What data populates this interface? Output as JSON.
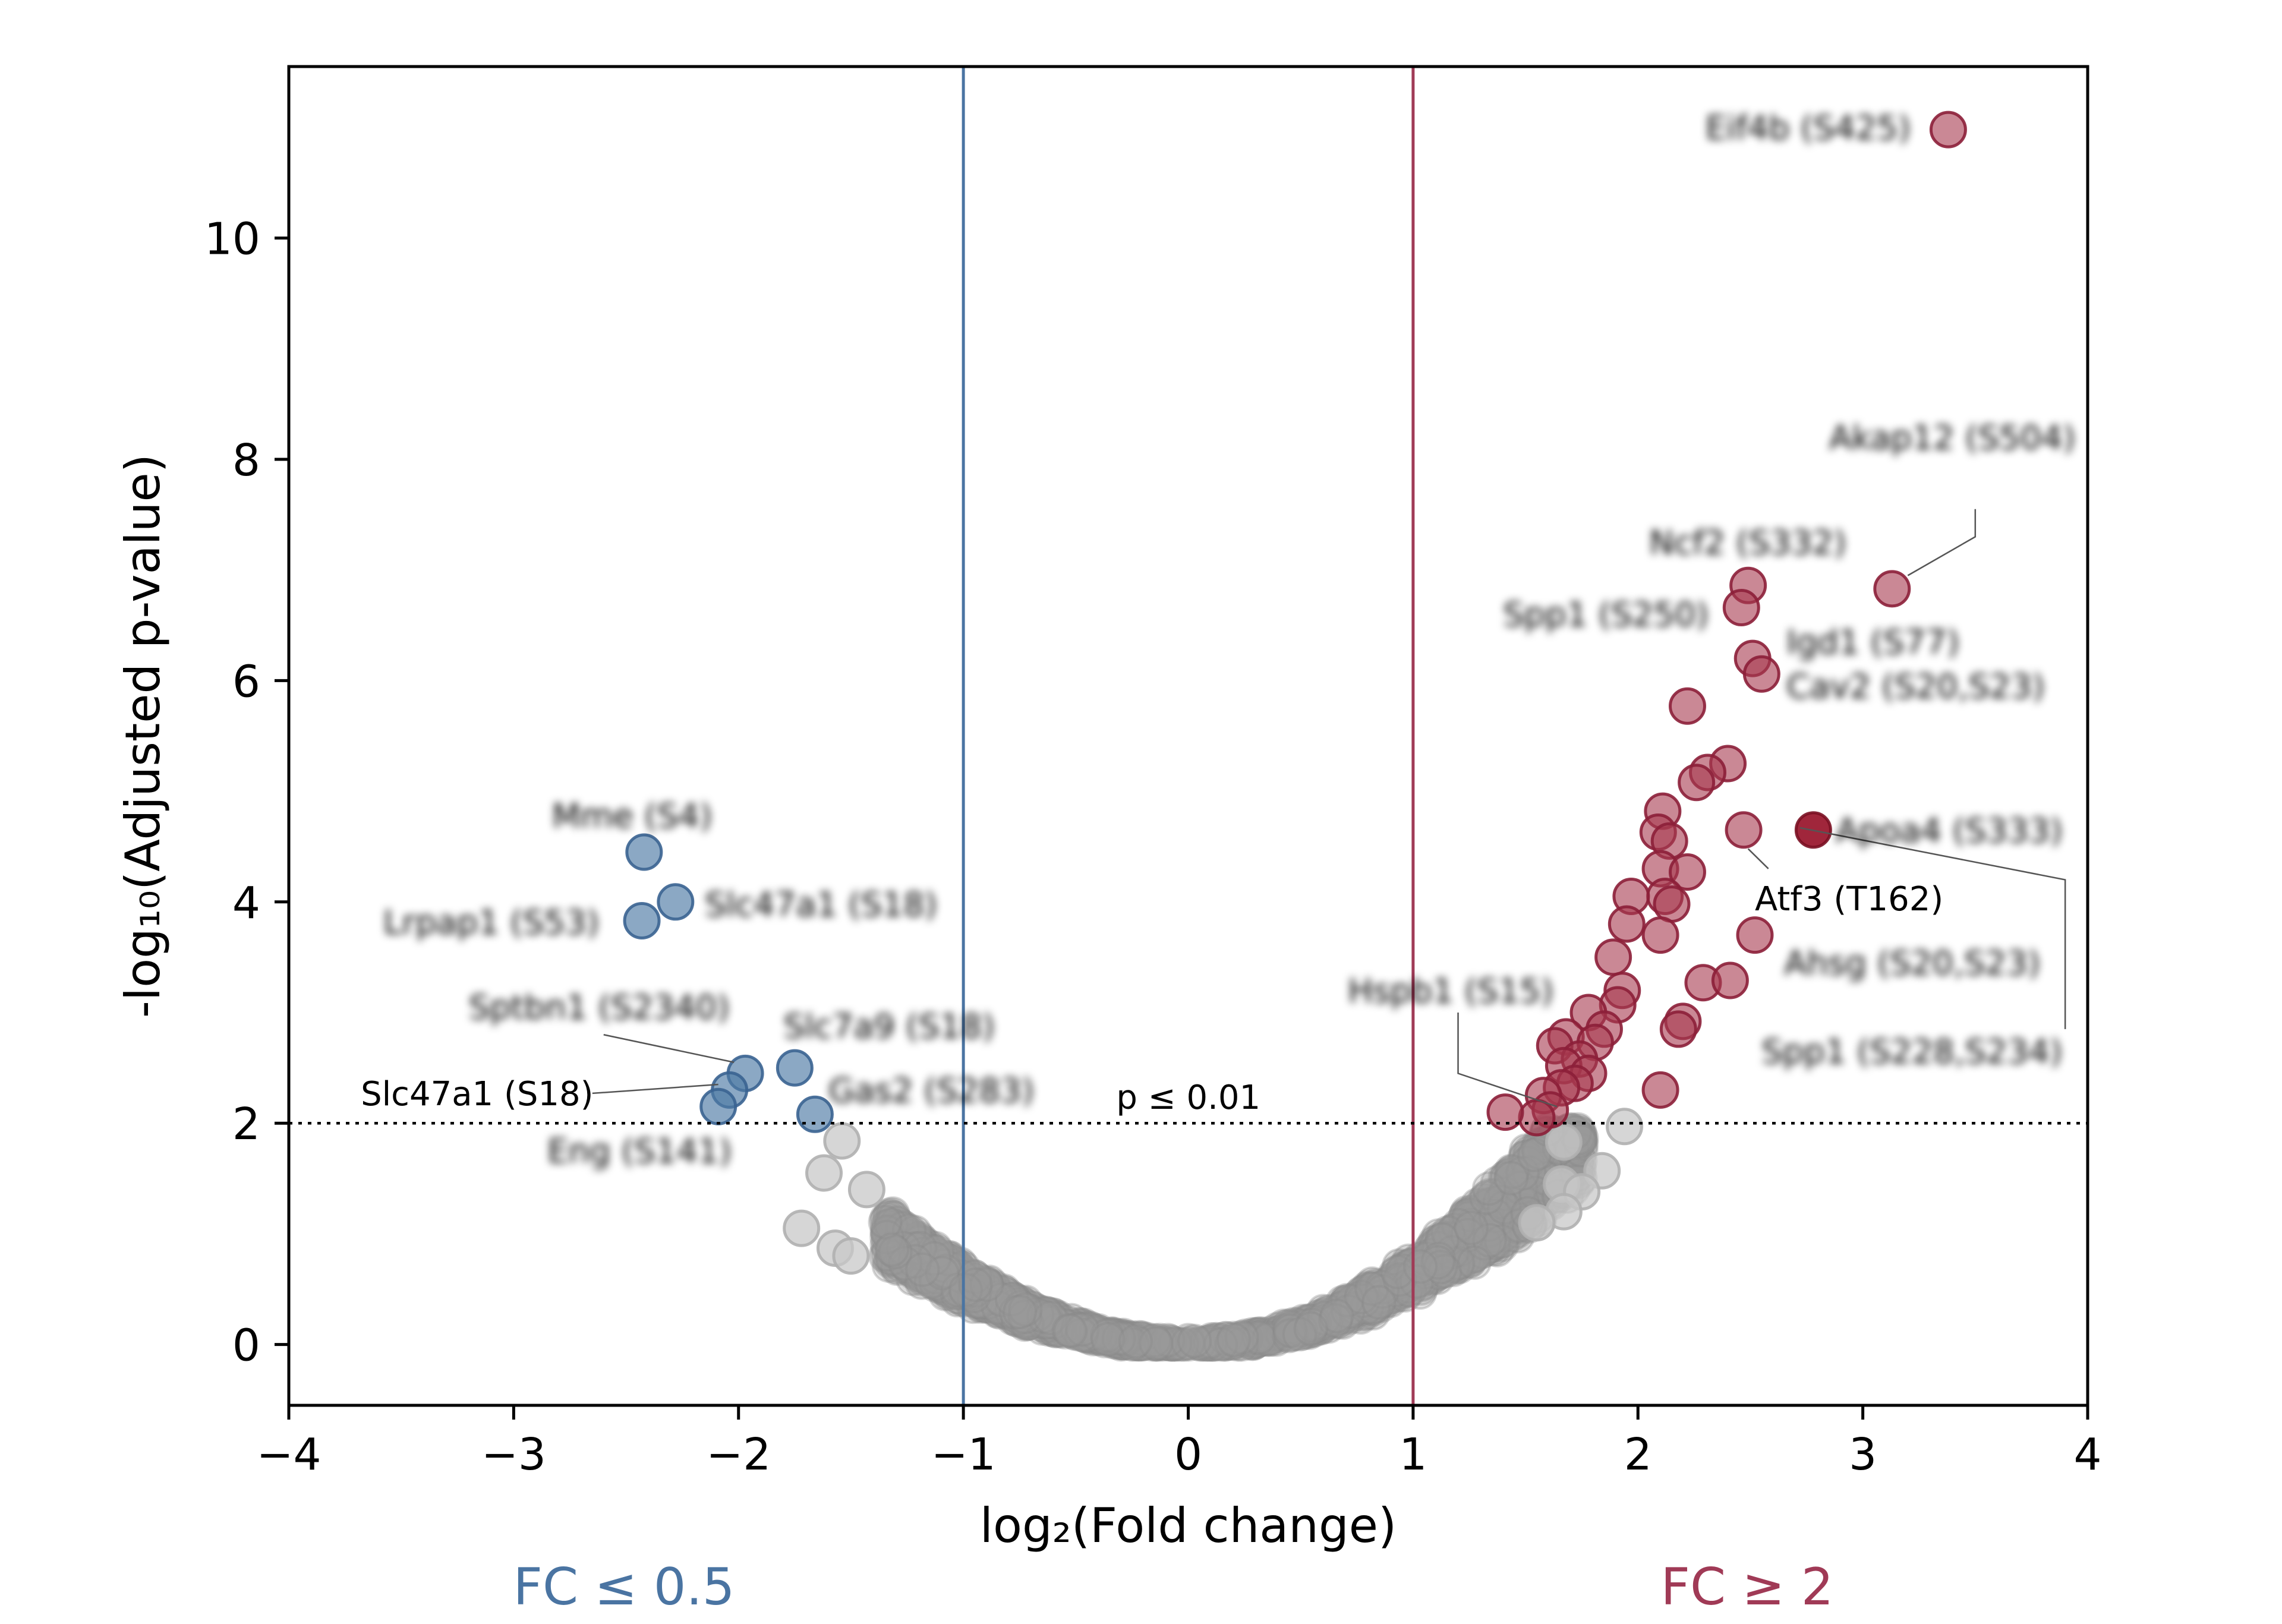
{
  "chart_data": {
    "type": "scatter",
    "xlabel": "log₂(Fold change)",
    "ylabel": "-log₁₀(Adjusted p-value)",
    "xlim": [
      -4,
      4
    ],
    "ylim": [
      -0.55,
      11.55
    ],
    "xticks": [
      -4,
      -3,
      -2,
      -1,
      0,
      1,
      2,
      3,
      4
    ],
    "xtick_labels": [
      "−4",
      "−3",
      "−2",
      "−1",
      "0",
      "1",
      "2",
      "3",
      "4"
    ],
    "yticks": [
      0,
      2,
      4,
      6,
      8,
      10
    ],
    "ytick_labels": [
      "0",
      "2",
      "4",
      "6",
      "8",
      "10"
    ],
    "grid": false,
    "thresholds": {
      "vertical_lines": [
        {
          "x": -1,
          "color": "#4a74a2"
        },
        {
          "x": 1,
          "color": "#a03a56"
        }
      ],
      "horizontal_line": {
        "y": 2,
        "style": "dotted",
        "label": "p ≤ 0.01"
      }
    },
    "region_labels": [
      {
        "text": "FC ≤ 0.5",
        "color": "#4a74a2"
      },
      {
        "text": "FC ≥ 2",
        "color": "#a03a56"
      }
    ],
    "colors": {
      "down": "#4d79a4",
      "up": "#a6384f",
      "up_highlight": "#9b1a30",
      "ns": "#9a9a9a",
      "ns_light": "#c8c8c8"
    },
    "series": [
      {
        "category": "down-regulated",
        "points": [
          {
            "x": -2.42,
            "y": 4.45
          },
          {
            "x": -2.28,
            "y": 4.0
          },
          {
            "x": -2.43,
            "y": 3.83
          },
          {
            "x": -1.97,
            "y": 2.45
          },
          {
            "x": -2.04,
            "y": 2.3
          },
          {
            "x": -2.09,
            "y": 2.15
          },
          {
            "x": -1.75,
            "y": 2.5
          },
          {
            "x": -1.66,
            "y": 2.08
          }
        ]
      },
      {
        "category": "up-regulated",
        "points": [
          {
            "x": 3.38,
            "y": 10.98
          },
          {
            "x": 3.13,
            "y": 6.83
          },
          {
            "x": 2.49,
            "y": 6.86
          },
          {
            "x": 2.46,
            "y": 6.66
          },
          {
            "x": 2.51,
            "y": 6.2
          },
          {
            "x": 2.55,
            "y": 6.06
          },
          {
            "x": 2.22,
            "y": 5.77
          },
          {
            "x": 2.4,
            "y": 5.25
          },
          {
            "x": 2.31,
            "y": 5.17
          },
          {
            "x": 2.26,
            "y": 5.08
          },
          {
            "x": 2.11,
            "y": 4.82
          },
          {
            "x": 2.09,
            "y": 4.63
          },
          {
            "x": 2.14,
            "y": 4.55
          },
          {
            "x": 2.47,
            "y": 4.65
          },
          {
            "x": 2.1,
            "y": 4.3
          },
          {
            "x": 2.22,
            "y": 4.27
          },
          {
            "x": 2.12,
            "y": 4.05
          },
          {
            "x": 1.97,
            "y": 4.05
          },
          {
            "x": 2.15,
            "y": 3.98
          },
          {
            "x": 1.95,
            "y": 3.8
          },
          {
            "x": 2.1,
            "y": 3.7
          },
          {
            "x": 2.52,
            "y": 3.7
          },
          {
            "x": 1.89,
            "y": 3.5
          },
          {
            "x": 2.29,
            "y": 3.27
          },
          {
            "x": 2.41,
            "y": 3.29
          },
          {
            "x": 1.93,
            "y": 3.2
          },
          {
            "x": 1.91,
            "y": 3.07
          },
          {
            "x": 1.78,
            "y": 3.0
          },
          {
            "x": 1.85,
            "y": 2.85
          },
          {
            "x": 2.2,
            "y": 2.92
          },
          {
            "x": 2.18,
            "y": 2.85
          },
          {
            "x": 1.68,
            "y": 2.78
          },
          {
            "x": 1.63,
            "y": 2.7
          },
          {
            "x": 1.81,
            "y": 2.73
          },
          {
            "x": 1.74,
            "y": 2.58
          },
          {
            "x": 1.67,
            "y": 2.52
          },
          {
            "x": 1.78,
            "y": 2.45
          },
          {
            "x": 1.72,
            "y": 2.36
          },
          {
            "x": 1.66,
            "y": 2.32
          },
          {
            "x": 1.58,
            "y": 2.25
          },
          {
            "x": 2.1,
            "y": 2.3
          },
          {
            "x": 1.61,
            "y": 2.12
          },
          {
            "x": 1.55,
            "y": 2.05
          },
          {
            "x": 1.41,
            "y": 2.1
          }
        ]
      },
      {
        "category": "up-regulated highlighted",
        "points": [
          {
            "x": 2.78,
            "y": 4.65
          }
        ]
      },
      {
        "category": "not significant (outliers)",
        "points": [
          {
            "x": -1.54,
            "y": 1.84
          },
          {
            "x": -1.62,
            "y": 1.55
          },
          {
            "x": -1.43,
            "y": 1.4
          },
          {
            "x": -1.72,
            "y": 1.05
          },
          {
            "x": -1.57,
            "y": 0.87
          },
          {
            "x": -1.5,
            "y": 0.8
          },
          {
            "x": 1.94,
            "y": 1.97
          },
          {
            "x": 1.84,
            "y": 1.57
          },
          {
            "x": 1.67,
            "y": 1.83
          },
          {
            "x": 1.66,
            "y": 1.45
          },
          {
            "x": 1.75,
            "y": 1.38
          },
          {
            "x": 1.67,
            "y": 1.2
          },
          {
            "x": 1.55,
            "y": 1.1
          }
        ]
      }
    ],
    "annotations": [
      {
        "text": "Eif4b (S425)",
        "x": 2.3,
        "y": 11.0,
        "blurred": true
      },
      {
        "text": "Akap12 (S504)",
        "x": 2.85,
        "y": 8.2,
        "blurred": true
      },
      {
        "text": "Ncf2 (S332)",
        "x": 2.05,
        "y": 7.25,
        "blurred": true
      },
      {
        "text": "Spp1 (S250)",
        "x": 1.4,
        "y": 6.6,
        "blurred": true
      },
      {
        "text": "Igd1 (S77)",
        "x": 2.66,
        "y": 6.35,
        "blurred": true
      },
      {
        "text": "Cav2 (S20,S23)",
        "x": 2.66,
        "y": 5.95,
        "blurred": true
      },
      {
        "text": "Apoa4 (S333)",
        "x": 2.88,
        "y": 4.65,
        "blurred": true
      },
      {
        "text": "Atf3 (T162)",
        "x": 2.52,
        "y": 4.03,
        "blurred": false
      },
      {
        "text": "Ahsg (S20,S23)",
        "x": 2.65,
        "y": 3.45,
        "blurred": true
      },
      {
        "text": "Spp1 (S228,S234)",
        "x": 2.55,
        "y": 2.65,
        "blurred": true
      },
      {
        "text": "Hspb1 (S15)",
        "x": 0.71,
        "y": 3.2,
        "blurred": true
      },
      {
        "text": "Mme (S4)",
        "x": -2.83,
        "y": 4.78,
        "blurred": true
      },
      {
        "text": "Slc47a1 (S18)",
        "x": -2.15,
        "y": 3.98,
        "blurred": true
      },
      {
        "text": "Lrpap1 (S53)",
        "x": -3.58,
        "y": 3.82,
        "blurred": true
      },
      {
        "text": "Sptbn1 (S2340)",
        "x": -3.2,
        "y": 3.05,
        "blurred": true
      },
      {
        "text": "Slc7a9 (S18)",
        "x": -1.8,
        "y": 2.88,
        "blurred": true
      },
      {
        "text": "Slc47a1 (S18)",
        "x": -3.68,
        "y": 2.27,
        "blurred": false
      },
      {
        "text": "Gas2 (S283)",
        "x": -1.6,
        "y": 2.3,
        "blurred": true
      },
      {
        "text": "Eng (S141)",
        "x": -2.85,
        "y": 1.75,
        "blurred": true
      }
    ]
  }
}
